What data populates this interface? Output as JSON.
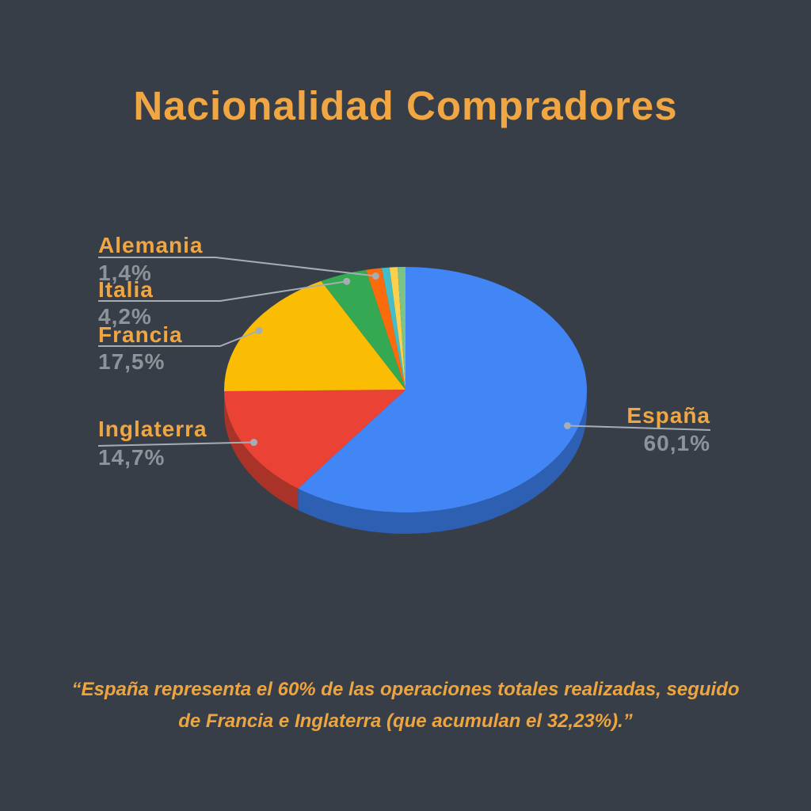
{
  "title": "Nacionalidad Compradores",
  "quote": {
    "lines": [
      "“España representa el 60% de las operaciones totales realizadas, seguido",
      "de Francia e Inglaterra (que acumulan el 32,23%).”"
    ]
  },
  "colors": {
    "background": "#373E47",
    "title_text": "#F0A643",
    "country_label_text": "#F0A643",
    "percent_label_text": "#8D939B",
    "leader_line": "#A6ADB4"
  },
  "chart_data": {
    "type": "pie",
    "is_3d": true,
    "start_angle_deg": 0,
    "direction": "clockwise",
    "legend_position": "none",
    "slices": [
      {
        "label": "España",
        "pct_label": "60,1%",
        "value": 60.1,
        "color": "#4285F4",
        "side_color": "#2D5FB2"
      },
      {
        "label": "Inglaterra",
        "pct_label": "14,7%",
        "value": 14.7,
        "color": "#EA4335",
        "side_color": "#A93328"
      },
      {
        "label": "Francia",
        "pct_label": "17,5%",
        "value": 17.5,
        "color": "#FBBC04",
        "side_color": "#B8890A"
      },
      {
        "label": "Italia",
        "pct_label": "4,2%",
        "value": 4.2,
        "color": "#34A853",
        "side_color": "#26793C"
      },
      {
        "label": "Alemania",
        "pct_label": "1,4%",
        "value": 1.4,
        "color": "#F96B0C",
        "side_color": "#B54E09"
      },
      {
        "label": "",
        "pct_label": "",
        "value": 0.7,
        "color": "#46BDC6",
        "side_color": "#338A91"
      },
      {
        "label": "",
        "pct_label": "",
        "value": 0.7,
        "color": "#FCCF4E",
        "side_color": "#B89639"
      },
      {
        "label": "",
        "pct_label": "",
        "value": 0.7,
        "color": "#7BC488",
        "side_color": "#5A8F63"
      }
    ]
  }
}
